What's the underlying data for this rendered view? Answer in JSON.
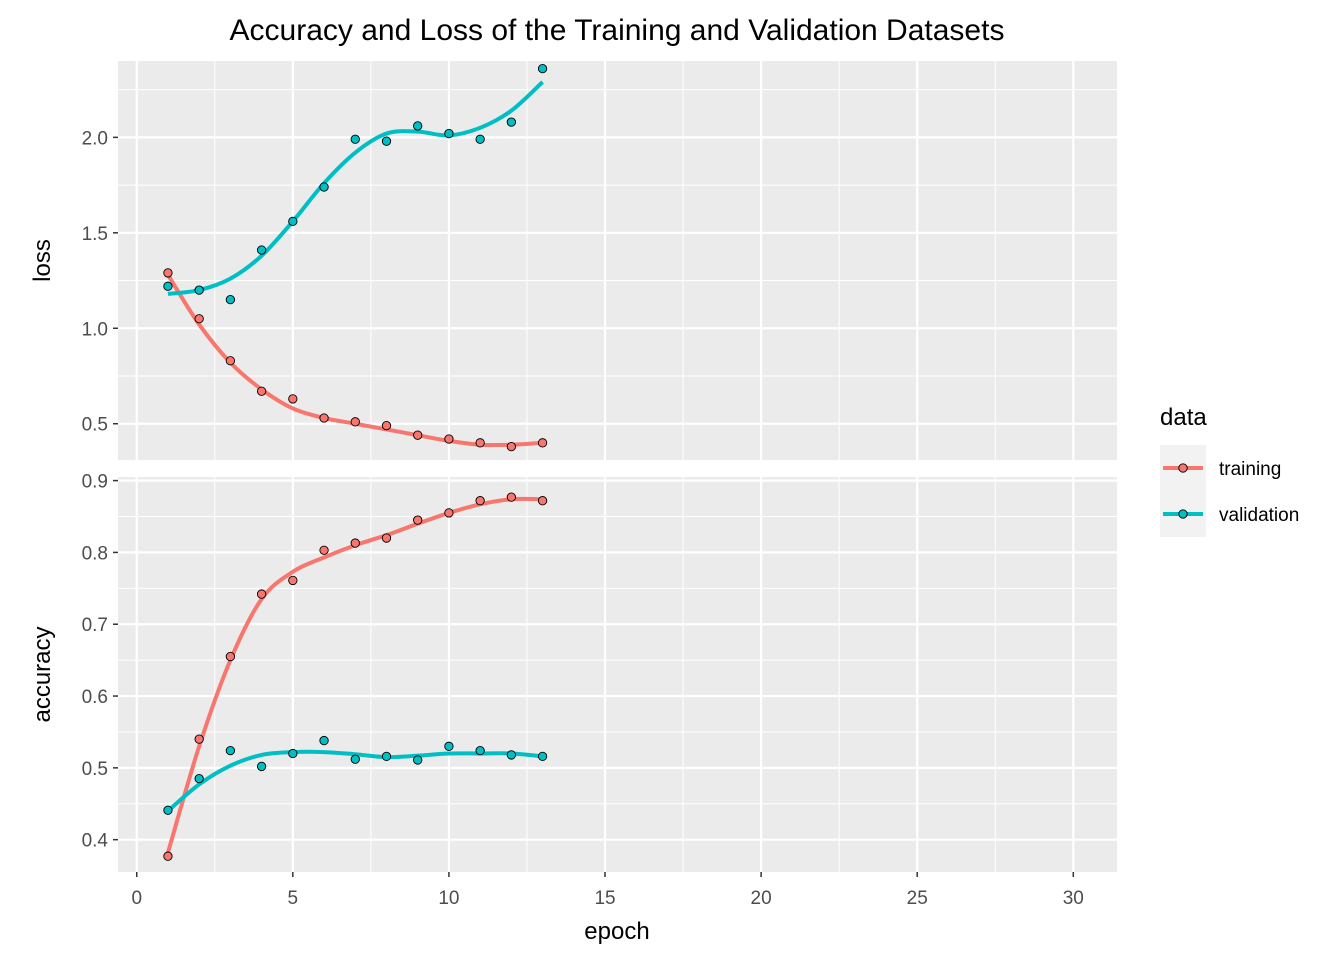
{
  "chart_data": {
    "type": "line",
    "title": "Accuracy and Loss of the Training and Validation Datasets",
    "xlabel": "epoch",
    "xlim": [
      -0.6,
      31.4
    ],
    "x_ticks": [
      0,
      5,
      10,
      15,
      20,
      25,
      30
    ],
    "x_tick_labels": [
      "0",
      "5",
      "10",
      "15",
      "20",
      "25",
      "30"
    ],
    "legend": {
      "title": "data",
      "position": "right",
      "entries": [
        {
          "label": "training",
          "color": "#F8766D"
        },
        {
          "label": "validation",
          "color": "#00BFC4"
        }
      ]
    },
    "panels": [
      {
        "ylabel": "loss",
        "ylim": [
          0.31,
          2.4
        ],
        "y_ticks": [
          0.5,
          1.0,
          1.5,
          2.0
        ],
        "y_tick_labels": [
          "0.5",
          "1.0",
          "1.5",
          "2.0"
        ],
        "series": [
          {
            "name": "training",
            "color": "#F8766D",
            "x": [
              1,
              2,
              3,
              4,
              5,
              6,
              7,
              8,
              9,
              10,
              11,
              12,
              13
            ],
            "values": [
              1.29,
              1.05,
              0.83,
              0.67,
              0.63,
              0.53,
              0.51,
              0.49,
              0.44,
              0.42,
              0.4,
              0.38,
              0.4
            ],
            "smooth": [
              1.28,
              1.02,
              0.82,
              0.68,
              0.58,
              0.53,
              0.5,
              0.47,
              0.44,
              0.41,
              0.39,
              0.39,
              0.4
            ]
          },
          {
            "name": "validation",
            "color": "#00BFC4",
            "x": [
              1,
              2,
              3,
              4,
              5,
              6,
              7,
              8,
              9,
              10,
              11,
              12,
              13
            ],
            "values": [
              1.22,
              1.2,
              1.15,
              1.41,
              1.56,
              1.74,
              1.99,
              1.98,
              2.06,
              2.02,
              1.99,
              2.08,
              2.36
            ],
            "smooth": [
              1.18,
              1.2,
              1.26,
              1.38,
              1.56,
              1.76,
              1.92,
              2.02,
              2.03,
              2.01,
              2.05,
              2.14,
              2.29
            ]
          }
        ]
      },
      {
        "ylabel": "accuracy",
        "ylim": [
          0.355,
          0.905
        ],
        "y_ticks": [
          0.4,
          0.5,
          0.6,
          0.7,
          0.8,
          0.9
        ],
        "y_tick_labels": [
          "0.4",
          "0.5",
          "0.6",
          "0.7",
          "0.8",
          "0.9"
        ],
        "series": [
          {
            "name": "training",
            "color": "#F8766D",
            "x": [
              1,
              2,
              3,
              4,
              5,
              6,
              7,
              8,
              9,
              10,
              11,
              12,
              13
            ],
            "values": [
              0.377,
              0.54,
              0.655,
              0.742,
              0.761,
              0.803,
              0.813,
              0.82,
              0.845,
              0.855,
              0.872,
              0.877,
              0.872
            ],
            "smooth": [
              0.382,
              0.53,
              0.65,
              0.735,
              0.773,
              0.793,
              0.81,
              0.824,
              0.84,
              0.855,
              0.867,
              0.874,
              0.874
            ]
          },
          {
            "name": "validation",
            "color": "#00BFC4",
            "x": [
              1,
              2,
              3,
              4,
              5,
              6,
              7,
              8,
              9,
              10,
              11,
              12,
              13
            ],
            "values": [
              0.441,
              0.485,
              0.524,
              0.502,
              0.52,
              0.538,
              0.512,
              0.516,
              0.511,
              0.53,
              0.524,
              0.518,
              0.516
            ],
            "smooth": [
              0.44,
              0.477,
              0.503,
              0.518,
              0.522,
              0.522,
              0.519,
              0.515,
              0.517,
              0.52,
              0.52,
              0.52,
              0.516
            ]
          }
        ]
      }
    ]
  }
}
